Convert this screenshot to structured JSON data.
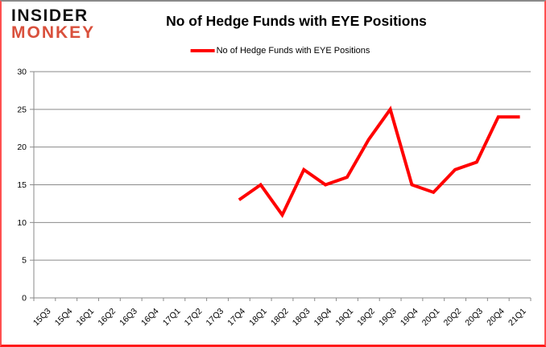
{
  "brand": {
    "line1": "INSIDER",
    "line2": "MONKEY",
    "line1_color": "#111111",
    "line2_color": "#d9503c"
  },
  "header": {
    "title": "No of Hedge Funds with EYE Positions"
  },
  "legend": {
    "label": "No of Hedge Funds with EYE Positions",
    "swatch_color": "#ff0000"
  },
  "chart_data": {
    "type": "line",
    "title": "No of Hedge Funds with EYE Positions",
    "categories": [
      "15Q3",
      "15Q4",
      "16Q1",
      "16Q2",
      "16Q3",
      "16Q4",
      "17Q1",
      "17Q2",
      "17Q3",
      "17Q4",
      "18Q1",
      "18Q2",
      "18Q3",
      "18Q4",
      "19Q1",
      "19Q2",
      "19Q3",
      "19Q4",
      "20Q1",
      "20Q2",
      "20Q3",
      "20Q4",
      "21Q1"
    ],
    "series": [
      {
        "name": "No of Hedge Funds with EYE Positions",
        "color": "#ff0000",
        "values": [
          null,
          null,
          null,
          null,
          null,
          null,
          null,
          null,
          null,
          13,
          15,
          11,
          17,
          15,
          16,
          21,
          25,
          15,
          14,
          17,
          18,
          24,
          24
        ]
      }
    ],
    "ylim": [
      0,
      30
    ],
    "yticks": [
      0,
      5,
      10,
      15,
      20,
      25,
      30
    ],
    "grid": true,
    "legend_position": "top-center",
    "axis_color": "#8a8a8a",
    "xlabel": "",
    "ylabel": ""
  }
}
